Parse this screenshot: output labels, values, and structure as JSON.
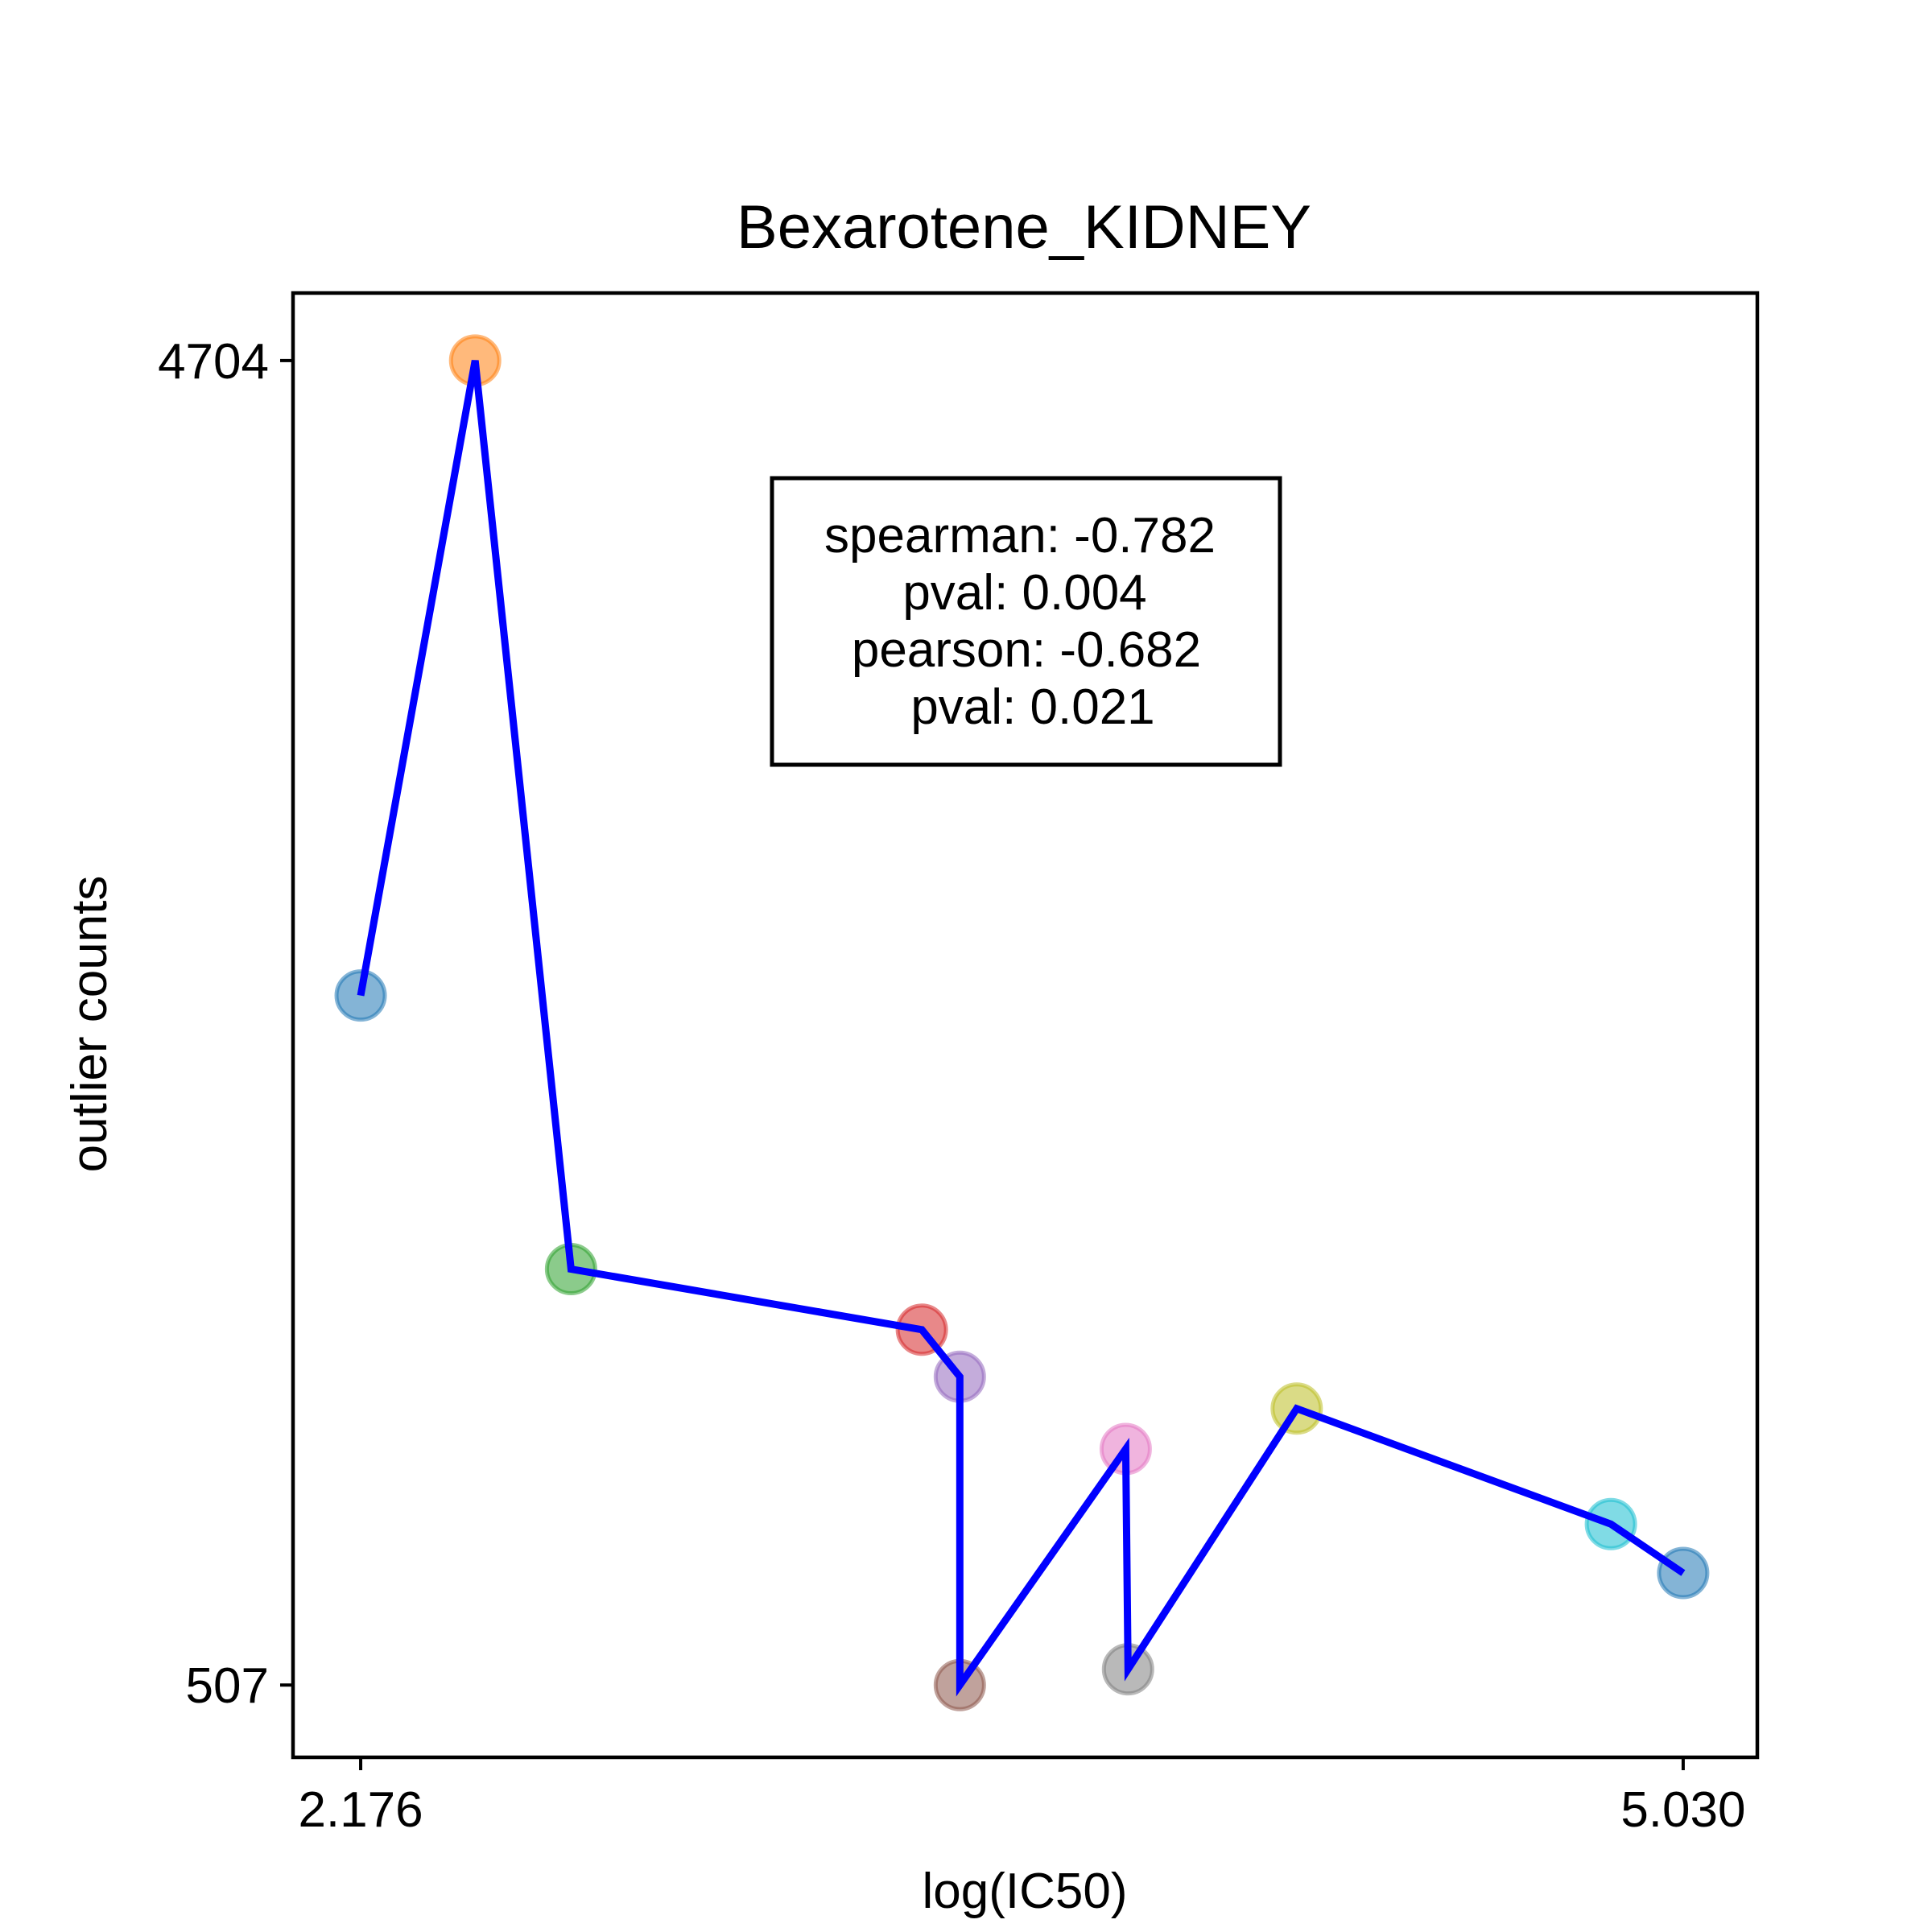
{
  "chart_data": {
    "type": "scatter",
    "title": "Bexarotene_KIDNEY",
    "xlabel": "log(IC50)",
    "ylabel": "outlier counts",
    "xlim": [
      2.03,
      5.19
    ],
    "ylim": [
      278,
      4918
    ],
    "xticks": [
      2.176,
      5.03
    ],
    "xtick_labels": [
      "2.176",
      "5.030"
    ],
    "yticks": [
      507,
      4704
    ],
    "ytick_labels": [
      "507",
      "4704"
    ],
    "grid": false,
    "line_color": "#0000ff",
    "points": [
      {
        "x": 2.176,
        "y": 2692,
        "color": "#1f77b4"
      },
      {
        "x": 2.423,
        "y": 4704,
        "color": "#ff7f0e"
      },
      {
        "x": 2.63,
        "y": 1825,
        "color": "#2ca02c"
      },
      {
        "x": 3.387,
        "y": 1633,
        "color": "#d62728"
      },
      {
        "x": 3.469,
        "y": 1484,
        "color": "#9467bd"
      },
      {
        "x": 3.469,
        "y": 507,
        "color": "#8c564b"
      },
      {
        "x": 3.827,
        "y": 1255,
        "color": "#e377c2"
      },
      {
        "x": 3.832,
        "y": 557,
        "color": "#7f7f7f"
      },
      {
        "x": 4.196,
        "y": 1383,
        "color": "#bcbd22"
      },
      {
        "x": 4.874,
        "y": 1017,
        "color": "#17becf"
      },
      {
        "x": 5.03,
        "y": 862,
        "color": "#1f77b4"
      }
    ],
    "annotation": {
      "lines": [
        "spearman: -0.782",
        "pval: 0.004",
        "pearson: -0.682",
        "pval: 0.021"
      ]
    }
  }
}
